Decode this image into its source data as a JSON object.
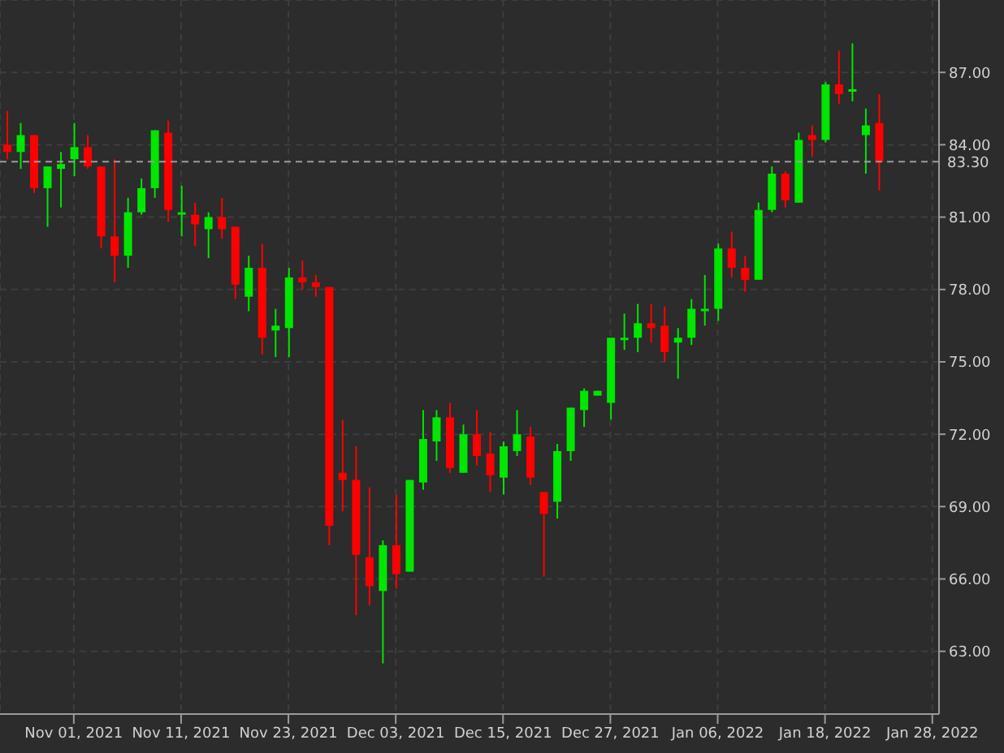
{
  "chart_data": {
    "type": "candlestick",
    "categories": [
      null,
      null,
      null,
      null,
      null,
      "Nov 01, 2021",
      null,
      null,
      null,
      null,
      null,
      null,
      null,
      "Nov 11, 2021",
      null,
      null,
      null,
      null,
      null,
      null,
      null,
      "Nov 23, 2021",
      null,
      null,
      null,
      null,
      null,
      null,
      null,
      "Dec 03, 2021",
      null,
      null,
      null,
      null,
      null,
      null,
      null,
      "Dec 15, 2021",
      null,
      null,
      null,
      null,
      null,
      null,
      null,
      "Dec 27, 2021",
      null,
      null,
      null,
      null,
      null,
      null,
      null,
      "Jan 06, 2022",
      null,
      null,
      null,
      null,
      null,
      null,
      null,
      "Jan 18, 2022",
      null,
      null,
      null,
      null,
      null,
      null,
      null,
      "Jan 28, 2022"
    ],
    "ohlc": [
      [
        84.0,
        85.4,
        83.4,
        83.7
      ],
      [
        83.7,
        84.9,
        83.0,
        84.4
      ],
      [
        84.4,
        84.4,
        82.0,
        82.2
      ],
      [
        82.2,
        83.1,
        80.6,
        83.1
      ],
      [
        83.0,
        83.7,
        81.4,
        83.2
      ],
      [
        83.4,
        84.9,
        82.7,
        83.9
      ],
      [
        83.9,
        84.4,
        83.0,
        83.1
      ],
      [
        83.1,
        83.1,
        79.7,
        80.2
      ],
      [
        80.2,
        83.4,
        78.3,
        79.4
      ],
      [
        79.4,
        81.8,
        78.9,
        81.2
      ],
      [
        81.2,
        82.6,
        81.1,
        82.2
      ],
      [
        82.2,
        84.6,
        81.8,
        84.6
      ],
      [
        84.5,
        85.0,
        80.8,
        81.3
      ],
      [
        81.1,
        82.3,
        80.2,
        81.2
      ],
      [
        81.1,
        81.6,
        79.8,
        80.7
      ],
      [
        80.5,
        81.2,
        79.3,
        81.0
      ],
      [
        81.0,
        81.8,
        80.1,
        80.5
      ],
      [
        80.6,
        80.6,
        77.6,
        78.2
      ],
      [
        77.7,
        79.4,
        77.1,
        78.9
      ],
      [
        78.9,
        79.9,
        75.3,
        76.0
      ],
      [
        76.3,
        77.2,
        75.2,
        76.5
      ],
      [
        76.4,
        78.9,
        75.2,
        78.5
      ],
      [
        78.5,
        79.2,
        78.0,
        78.3
      ],
      [
        78.3,
        78.6,
        77.7,
        78.1
      ],
      [
        78.1,
        78.1,
        67.4,
        68.2
      ],
      [
        70.4,
        72.6,
        68.8,
        70.1
      ],
      [
        70.1,
        71.5,
        64.5,
        67.0
      ],
      [
        66.9,
        69.8,
        64.9,
        65.7
      ],
      [
        65.5,
        67.6,
        62.5,
        67.4
      ],
      [
        67.4,
        69.5,
        65.6,
        66.2
      ],
      [
        66.3,
        70.1,
        66.3,
        70.1
      ],
      [
        70.0,
        73.0,
        69.7,
        71.8
      ],
      [
        71.7,
        73.0,
        70.9,
        72.7
      ],
      [
        72.7,
        73.3,
        70.4,
        70.6
      ],
      [
        70.4,
        72.4,
        70.4,
        72.0
      ],
      [
        72.0,
        73.0,
        70.7,
        71.1
      ],
      [
        71.2,
        72.1,
        69.6,
        70.3
      ],
      [
        70.2,
        71.7,
        69.5,
        71.5
      ],
      [
        71.3,
        73.0,
        71.1,
        72.0
      ],
      [
        71.9,
        72.3,
        69.9,
        70.2
      ],
      [
        69.6,
        69.6,
        66.1,
        68.7
      ],
      [
        69.2,
        71.6,
        68.5,
        71.3
      ],
      [
        71.3,
        73.1,
        70.9,
        73.1
      ],
      [
        73.0,
        73.9,
        72.3,
        73.8
      ],
      [
        73.6,
        73.8,
        73.6,
        73.8
      ],
      [
        73.3,
        76.0,
        72.6,
        76.0
      ],
      [
        75.9,
        77.0,
        75.5,
        76.0
      ],
      [
        76.0,
        77.4,
        75.4,
        76.6
      ],
      [
        76.6,
        77.4,
        75.8,
        76.4
      ],
      [
        76.5,
        77.3,
        75.0,
        75.4
      ],
      [
        75.8,
        76.4,
        74.3,
        76.0
      ],
      [
        76.0,
        77.6,
        75.7,
        77.2
      ],
      [
        77.1,
        78.6,
        76.5,
        77.2
      ],
      [
        77.2,
        79.9,
        76.7,
        79.7
      ],
      [
        79.7,
        80.4,
        78.5,
        78.9
      ],
      [
        78.9,
        79.4,
        77.9,
        78.4
      ],
      [
        78.4,
        81.6,
        78.4,
        81.3
      ],
      [
        81.3,
        83.1,
        81.2,
        82.8
      ],
      [
        82.8,
        82.9,
        81.4,
        81.7
      ],
      [
        81.6,
        84.5,
        81.6,
        84.2
      ],
      [
        84.4,
        84.8,
        83.5,
        84.2
      ],
      [
        84.2,
        86.6,
        84.1,
        86.5
      ],
      [
        86.5,
        87.9,
        85.7,
        86.1
      ],
      [
        86.2,
        88.2,
        85.8,
        86.3
      ],
      [
        84.4,
        85.5,
        82.8,
        84.8
      ],
      [
        84.9,
        86.1,
        82.1,
        83.3
      ],
      null,
      null,
      null,
      null
    ],
    "colors": [
      "#ff0000",
      "#00e600",
      "#ff0000",
      "#00e600",
      "#00e600",
      "#00e600",
      "#ff0000",
      "#ff0000",
      "#ff0000",
      "#00e600",
      "#00e600",
      "#00e600",
      "#ff0000",
      "#00e600",
      "#ff0000",
      "#00e600",
      "#ff0000",
      "#ff0000",
      "#00e600",
      "#ff0000",
      "#00e600",
      "#00e600",
      "#ff0000",
      "#ff0000",
      "#ff0000",
      "#ff0000",
      "#ff0000",
      "#ff0000",
      "#00e600",
      "#ff0000",
      "#00e600",
      "#00e600",
      "#00e600",
      "#ff0000",
      "#00e600",
      "#ff0000",
      "#ff0000",
      "#00e600",
      "#00e600",
      "#ff0000",
      "#ff0000",
      "#00e600",
      "#00e600",
      "#00e600",
      "#00e600",
      "#00e600",
      "#00e600",
      "#00e600",
      "#ff0000",
      "#ff0000",
      "#00e600",
      "#00e600",
      "#00e600",
      "#00e600",
      "#ff0000",
      "#ff0000",
      "#00e600",
      "#00e600",
      "#ff0000",
      "#00e600",
      "#ff0000",
      "#00e600",
      "#ff0000",
      "#00e600",
      "#00e600",
      "#ff0000",
      null,
      null,
      null,
      null
    ],
    "ylim": [
      60.4,
      90
    ],
    "yticks": [
      {
        "value": 63,
        "label": "63.00"
      },
      {
        "value": 66,
        "label": "66.00"
      },
      {
        "value": 69,
        "label": "69.00"
      },
      {
        "value": 72,
        "label": "72.00"
      },
      {
        "value": 75,
        "label": "75.00"
      },
      {
        "value": 78,
        "label": "78.00"
      },
      {
        "value": 81,
        "label": "81.00"
      },
      {
        "value": 84,
        "label": "84.00"
      },
      {
        "value": 87,
        "label": "87.00"
      }
    ],
    "ref_lines": [
      {
        "axis": "y",
        "value": 83.3,
        "label": "83.30",
        "color": "#9a9a9a",
        "line_style": "dashed"
      }
    ],
    "grid": true
  }
}
